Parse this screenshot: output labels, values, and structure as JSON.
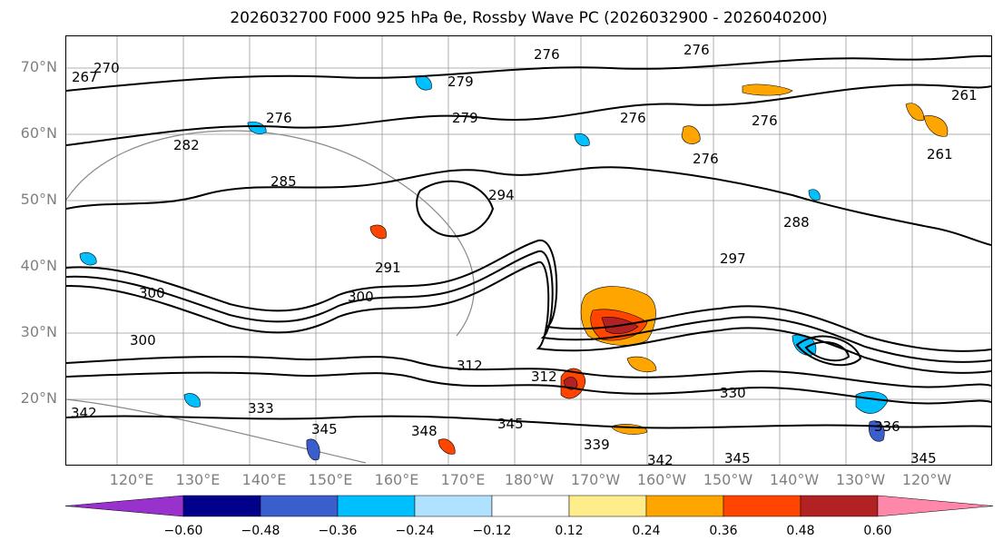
{
  "title": "2026032700 F000 925 hPa θe, Rossby Wave PC (2026032900 - 2026040200)",
  "lat_labels": [
    "70°N",
    "60°N",
    "50°N",
    "40°N",
    "30°N",
    "20°N"
  ],
  "lon_labels": [
    "120°E",
    "130°E",
    "140°E",
    "150°E",
    "160°E",
    "170°E",
    "180°W",
    "170°W",
    "160°W",
    "150°W",
    "140°W",
    "130°W",
    "120°W"
  ],
  "contour_labels": [
    "267",
    "270",
    "276",
    "276",
    "276",
    "279",
    "279",
    "276",
    "276",
    "276",
    "282",
    "285",
    "294",
    "288",
    "291",
    "297",
    "300",
    "300",
    "300",
    "312",
    "312",
    "330",
    "333",
    "339",
    "342",
    "342",
    "345",
    "345",
    "345",
    "348",
    "336",
    "345",
    "261",
    "261"
  ],
  "colorbar": {
    "ticks": [
      "−0.60",
      "−0.48",
      "−0.36",
      "−0.24",
      "−0.12",
      "0.12",
      "0.24",
      "0.36",
      "0.48",
      "0.60"
    ],
    "colors": [
      "#9932cc",
      "#00008b",
      "#3a5fcd",
      "#00bfff",
      "#b0e2ff",
      "#ffffff",
      "#ffec8b",
      "#ffa500",
      "#ff4500",
      "#b22222",
      "#ff88aa"
    ]
  },
  "map_colors": {
    "positive": "#ffa500",
    "positive_strong": "#ff4500",
    "positive_max": "#b22222",
    "negative": "#00bfff",
    "negative_strong": "#3a5fcd"
  }
}
